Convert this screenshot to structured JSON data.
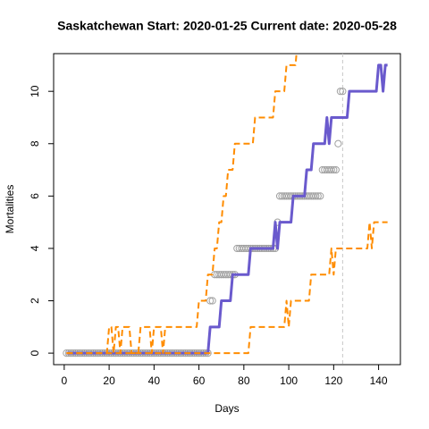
{
  "chart_data": {
    "type": "line",
    "title": "Saskatchewan Start:  2020-01-25   Current date:  2020-05-28",
    "xlabel": "Days",
    "ylabel": "Mortalities",
    "x": [
      1,
      2,
      3,
      4,
      5,
      6,
      7,
      8,
      9,
      10,
      11,
      12,
      13,
      14,
      15,
      16,
      17,
      18,
      19,
      20,
      21,
      22,
      23,
      24,
      25,
      26,
      27,
      28,
      29,
      30,
      31,
      32,
      33,
      34,
      35,
      36,
      37,
      38,
      39,
      40,
      41,
      42,
      43,
      44,
      45,
      46,
      47,
      48,
      49,
      50,
      51,
      52,
      53,
      54,
      55,
      56,
      57,
      58,
      59,
      60,
      61,
      62,
      63,
      64,
      65,
      66,
      67,
      68,
      69,
      70,
      71,
      72,
      73,
      74,
      75,
      76,
      77,
      78,
      79,
      80,
      81,
      82,
      83,
      84,
      85,
      86,
      87,
      88,
      89,
      90,
      91,
      92,
      93,
      94,
      95,
      96,
      97,
      98,
      99,
      100,
      101,
      102,
      103,
      104,
      105,
      106,
      107,
      108,
      109,
      110,
      111,
      112,
      113,
      114,
      115,
      116,
      117,
      118,
      119,
      120,
      121,
      122,
      123,
      124,
      125,
      126,
      127,
      128,
      129,
      130,
      131,
      132,
      133,
      134,
      135,
      136,
      137,
      138,
      139,
      140,
      141,
      142,
      143,
      144
    ],
    "series": [
      {
        "style": "points",
        "color": "#a0a0a0",
        "values": [
          0,
          0,
          0,
          0,
          0,
          0,
          0,
          0,
          0,
          0,
          0,
          0,
          0,
          0,
          0,
          0,
          0,
          0,
          0,
          0,
          0,
          0,
          0,
          0,
          0,
          0,
          0,
          0,
          0,
          0,
          0,
          0,
          0,
          0,
          0,
          0,
          0,
          0,
          0,
          0,
          0,
          0,
          0,
          0,
          0,
          0,
          0,
          0,
          0,
          0,
          0,
          0,
          0,
          0,
          0,
          0,
          0,
          0,
          0,
          0,
          0,
          0,
          0,
          0,
          2,
          2,
          3,
          3,
          3,
          3,
          3,
          3,
          3,
          3,
          3,
          3,
          4,
          4,
          4,
          4,
          4,
          4,
          4,
          4,
          4,
          4,
          4,
          4,
          4,
          4,
          4,
          4,
          4,
          4,
          5,
          6,
          6,
          6,
          6,
          6,
          6,
          6,
          6,
          6,
          6,
          6,
          6,
          6,
          6,
          6,
          6,
          6,
          6,
          6,
          7,
          7,
          7,
          7,
          7,
          7,
          7,
          8,
          10,
          10,
          null,
          null,
          null,
          null,
          null,
          null,
          null,
          null,
          null,
          null,
          null,
          null,
          null,
          null,
          null,
          null,
          null,
          null,
          null,
          null
        ]
      },
      {
        "style": "solid",
        "color": "#6a5acd",
        "values": [
          0,
          0,
          0,
          0,
          0,
          0,
          0,
          0,
          0,
          0,
          0,
          0,
          0,
          0,
          0,
          0,
          0,
          0,
          0,
          0,
          0,
          0,
          0,
          0,
          0,
          0,
          0,
          0,
          0,
          0,
          0,
          0,
          0,
          0,
          0,
          0,
          0,
          0,
          0,
          0,
          0,
          0,
          0,
          0,
          0,
          0,
          0,
          0,
          0,
          0,
          0,
          0,
          0,
          0,
          0,
          0,
          0,
          0,
          0,
          0,
          0,
          0,
          0,
          0,
          1,
          1,
          1,
          1,
          1,
          2,
          2,
          2,
          2,
          2,
          3,
          3,
          3,
          3,
          3,
          3,
          3,
          3,
          4,
          4,
          4,
          4,
          4,
          4,
          4,
          4,
          4,
          4,
          4,
          5,
          4,
          5,
          5,
          5,
          5,
          5,
          5,
          6,
          6,
          6,
          6,
          6,
          6,
          7,
          7,
          7,
          8,
          8,
          8,
          8,
          8,
          8,
          9,
          8,
          9,
          9,
          9,
          9,
          9,
          9,
          9,
          9,
          10,
          10,
          10,
          10,
          10,
          10,
          10,
          10,
          10,
          10,
          10,
          10,
          10,
          11,
          11,
          10,
          11,
          11
        ]
      },
      {
        "style": "dashed",
        "color": "#ff8c00",
        "values": [
          0,
          0,
          0,
          0,
          0,
          0,
          0,
          0,
          0,
          0,
          0,
          0,
          0,
          0,
          0,
          0,
          0,
          0,
          0,
          0,
          0,
          0,
          0,
          0,
          0,
          0,
          0,
          0,
          0,
          0,
          0,
          0,
          0,
          0,
          0,
          0,
          0,
          0,
          0,
          0,
          0,
          0,
          0,
          0,
          0,
          0,
          0,
          0,
          0,
          0,
          0,
          0,
          0,
          0,
          0,
          0,
          0,
          0,
          0,
          0,
          0,
          0,
          0,
          0,
          0,
          0,
          0,
          0,
          0,
          0,
          0,
          0,
          0,
          0,
          0,
          0,
          0,
          0,
          0,
          0,
          0,
          0,
          1,
          1,
          1,
          1,
          1,
          1,
          1,
          1,
          1,
          1,
          1,
          1,
          1,
          1,
          1,
          1,
          2,
          1,
          2,
          2,
          2,
          2,
          2,
          2,
          2,
          2,
          2,
          3,
          3,
          3,
          3,
          3,
          3,
          3,
          3,
          3,
          4,
          3,
          4,
          4,
          4,
          4,
          4,
          4,
          4,
          4,
          4,
          4,
          4,
          4,
          4,
          4,
          4,
          5,
          4,
          5,
          5,
          5,
          5,
          5,
          5,
          5
        ]
      },
      {
        "style": "dashed",
        "color": "#ff8c00",
        "values": [
          0,
          0,
          0,
          0,
          0,
          0,
          0,
          0,
          0,
          0,
          0,
          0,
          0,
          0,
          0,
          0,
          0,
          0,
          0,
          1,
          1,
          0,
          1,
          1,
          0,
          1,
          1,
          1,
          1,
          0,
          0,
          0,
          0,
          1,
          1,
          1,
          1,
          1,
          0,
          1,
          1,
          1,
          1,
          0,
          1,
          1,
          1,
          1,
          1,
          1,
          1,
          1,
          1,
          1,
          1,
          1,
          1,
          1,
          1,
          2,
          2,
          2,
          2,
          3,
          3,
          3,
          4,
          4,
          5,
          5,
          6,
          6,
          7,
          7,
          7,
          8,
          8,
          8,
          8,
          8,
          8,
          8,
          8,
          8,
          9,
          9,
          9,
          9,
          9,
          9,
          9,
          9,
          9,
          10,
          10,
          10,
          10,
          10,
          11,
          11,
          11,
          11,
          11,
          12,
          12,
          12,
          12,
          12,
          12,
          12,
          12,
          12,
          12,
          12,
          12,
          12,
          12,
          12,
          12,
          12,
          12,
          12,
          12,
          12,
          12,
          12,
          12,
          12,
          12,
          12,
          12,
          12,
          12,
          12,
          12,
          12,
          12,
          12,
          12,
          12,
          12,
          12,
          12,
          12
        ]
      }
    ],
    "vline": 124,
    "vline_color": "#c8c8c8",
    "xlim": [
      -4.72,
      149.72
    ],
    "xticks": [
      0,
      20,
      40,
      60,
      80,
      100,
      120,
      140
    ],
    "ylim": [
      -0.44,
      11.44
    ],
    "yticks": [
      0,
      2,
      4,
      6,
      8,
      10
    ]
  }
}
